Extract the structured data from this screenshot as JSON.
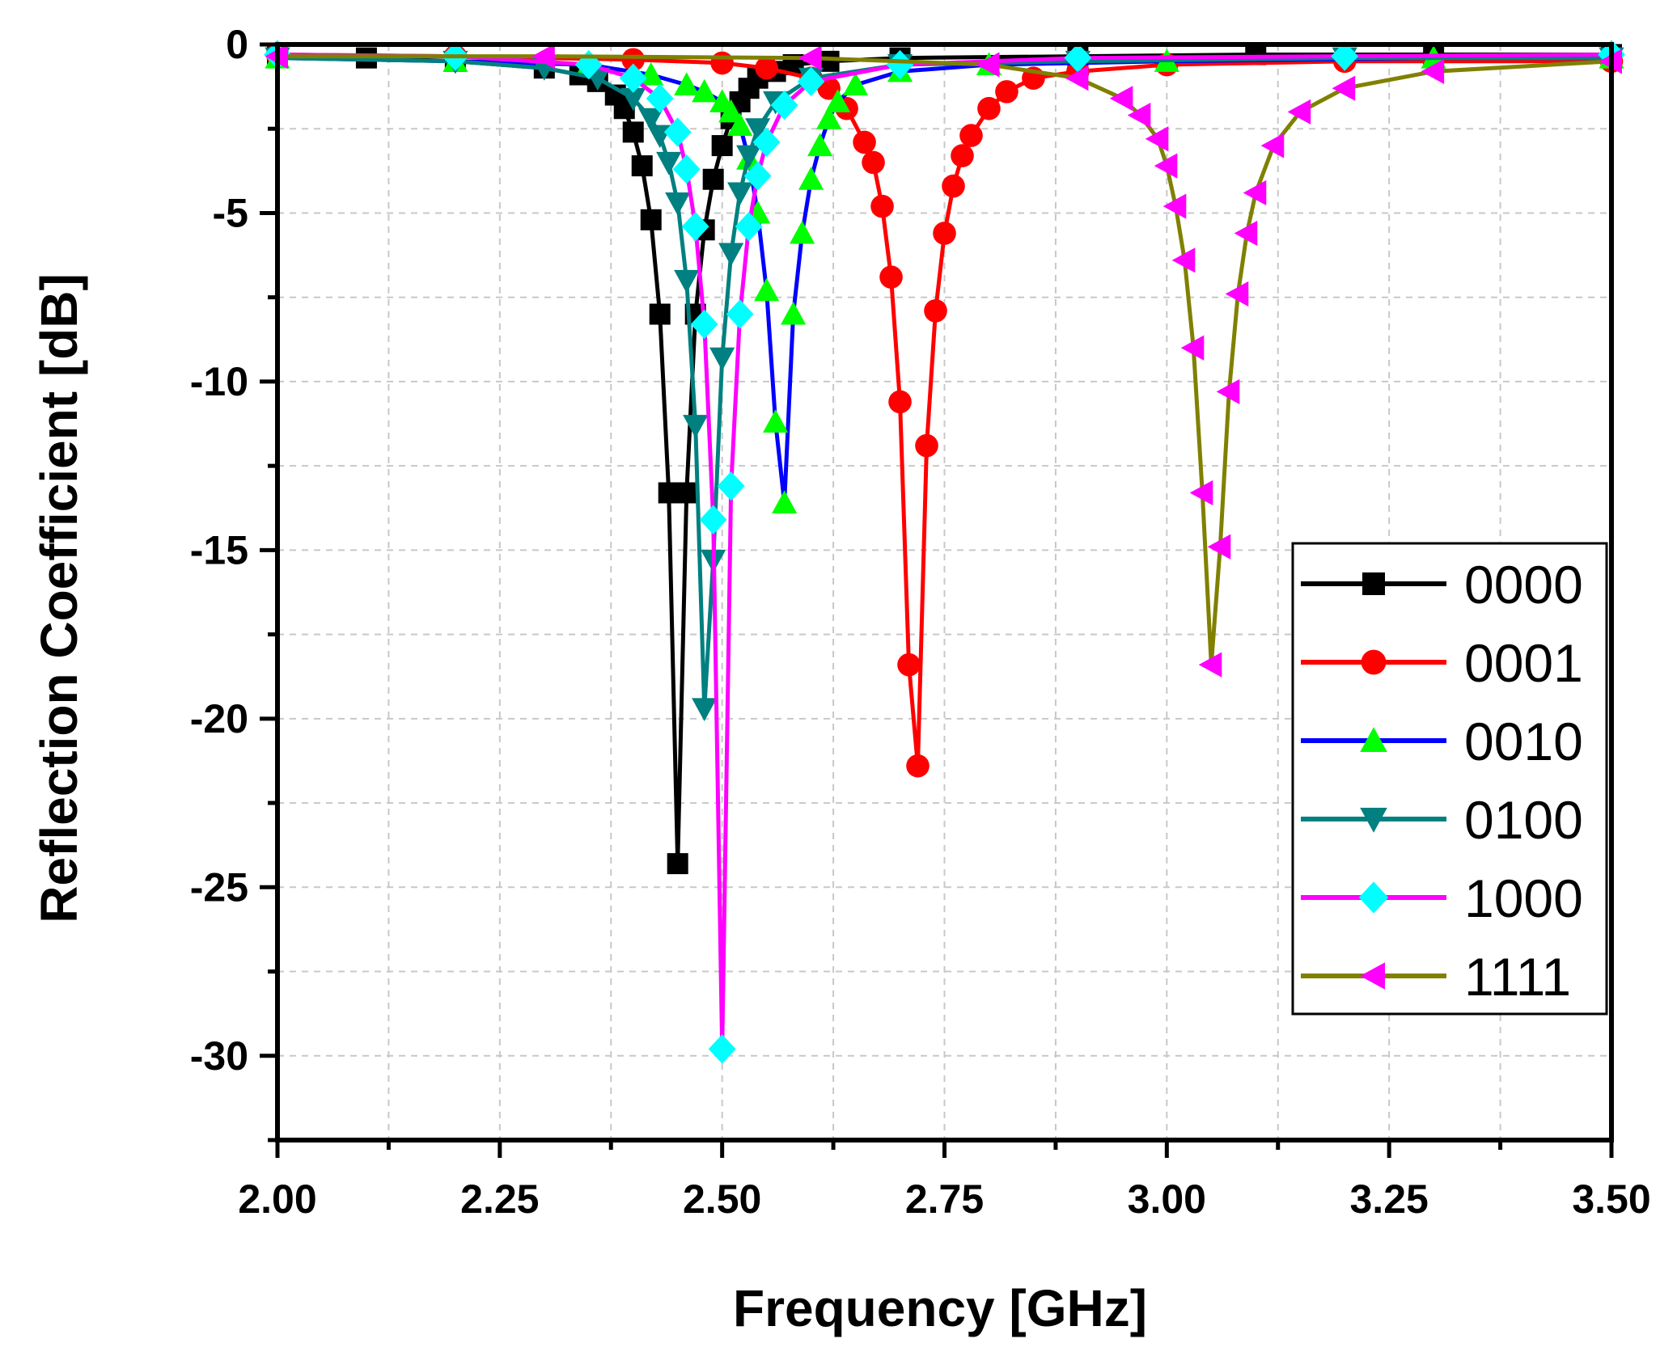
{
  "chart_data": {
    "type": "line",
    "title": "",
    "xlabel": "Frequency [GHz]",
    "ylabel": "Reflection Coefficient [dB]",
    "xlim": [
      2.0,
      3.5
    ],
    "ylim": [
      -32.5,
      0
    ],
    "xticks": [
      2.0,
      2.25,
      2.5,
      2.75,
      3.0,
      3.25,
      3.5
    ],
    "xtick_labels": [
      "2.00",
      "2.25",
      "2.50",
      "2.75",
      "3.00",
      "3.25",
      "3.50"
    ],
    "yticks": [
      0,
      -5,
      -10,
      -15,
      -20,
      -25,
      -30
    ],
    "ytick_labels": [
      "0",
      "-5",
      "-10",
      "-15",
      "-20",
      "-25",
      "-30"
    ],
    "grid": true,
    "legend_position": "right",
    "series": [
      {
        "name": "0000",
        "color": "#000000",
        "marker": "square",
        "x": [
          2.0,
          2.1,
          2.2,
          2.3,
          2.34,
          2.36,
          2.38,
          2.39,
          2.4,
          2.41,
          2.42,
          2.43,
          2.44,
          2.45,
          2.46,
          2.47,
          2.48,
          2.49,
          2.5,
          2.51,
          2.52,
          2.53,
          2.54,
          2.56,
          2.58,
          2.62,
          2.7,
          2.9,
          3.1,
          3.3,
          3.5
        ],
        "y": [
          -0.35,
          -0.4,
          -0.5,
          -0.7,
          -0.9,
          -1.1,
          -1.5,
          -1.9,
          -2.6,
          -3.6,
          -5.2,
          -8.0,
          -13.3,
          -24.3,
          -13.3,
          -8.0,
          -5.5,
          -4.0,
          -3.0,
          -2.2,
          -1.7,
          -1.3,
          -1.0,
          -0.8,
          -0.6,
          -0.5,
          -0.4,
          -0.35,
          -0.3,
          -0.3,
          -0.3
        ]
      },
      {
        "name": "0001",
        "color": "#ff0000",
        "marker": "circle",
        "x": [
          2.0,
          2.2,
          2.4,
          2.5,
          2.55,
          2.6,
          2.62,
          2.64,
          2.66,
          2.67,
          2.68,
          2.69,
          2.7,
          2.71,
          2.72,
          2.73,
          2.74,
          2.75,
          2.76,
          2.77,
          2.78,
          2.8,
          2.82,
          2.85,
          2.9,
          3.0,
          3.2,
          3.5
        ],
        "y": [
          -0.3,
          -0.35,
          -0.45,
          -0.55,
          -0.7,
          -1.0,
          -1.3,
          -1.9,
          -2.9,
          -3.5,
          -4.8,
          -6.9,
          -10.6,
          -18.4,
          -21.4,
          -11.9,
          -7.9,
          -5.6,
          -4.2,
          -3.3,
          -2.7,
          -1.9,
          -1.4,
          -1.0,
          -0.8,
          -0.6,
          -0.5,
          -0.5
        ]
      },
      {
        "name": "0010",
        "color": "#0000ff",
        "marker": "triangle-up",
        "x": [
          2.0,
          2.2,
          2.35,
          2.42,
          2.46,
          2.48,
          2.5,
          2.51,
          2.52,
          2.53,
          2.54,
          2.55,
          2.56,
          2.57,
          2.58,
          2.59,
          2.6,
          2.61,
          2.62,
          2.63,
          2.65,
          2.7,
          2.8,
          3.0,
          3.3,
          3.5
        ],
        "y": [
          -0.4,
          -0.5,
          -0.6,
          -0.9,
          -1.2,
          -1.4,
          -1.7,
          -2.0,
          -2.4,
          -3.4,
          -5.0,
          -7.3,
          -11.2,
          -13.6,
          -8.0,
          -5.6,
          -4.0,
          -3.0,
          -2.2,
          -1.7,
          -1.2,
          -0.8,
          -0.6,
          -0.5,
          -0.4,
          -0.4
        ]
      },
      {
        "name": "0100",
        "color": "#008080",
        "marker": "triangle-down",
        "x": [
          2.0,
          2.2,
          2.3,
          2.36,
          2.4,
          2.42,
          2.43,
          2.44,
          2.45,
          2.46,
          2.47,
          2.48,
          2.49,
          2.5,
          2.51,
          2.52,
          2.53,
          2.54,
          2.56,
          2.6,
          2.7,
          2.9,
          3.2,
          3.5
        ],
        "y": [
          -0.4,
          -0.5,
          -0.7,
          -1.0,
          -1.6,
          -2.2,
          -2.7,
          -3.5,
          -4.7,
          -7.0,
          -11.3,
          -19.7,
          -15.3,
          -9.3,
          -6.2,
          -4.4,
          -3.3,
          -2.5,
          -1.7,
          -1.0,
          -0.6,
          -0.5,
          -0.4,
          -0.4
        ]
      },
      {
        "name": "1000",
        "color": "#ff00ff",
        "marker": "diamond",
        "x": [
          2.0,
          2.2,
          2.35,
          2.4,
          2.43,
          2.45,
          2.46,
          2.47,
          2.48,
          2.49,
          2.5,
          2.51,
          2.52,
          2.53,
          2.54,
          2.55,
          2.57,
          2.6,
          2.7,
          2.9,
          3.2,
          3.5
        ],
        "y": [
          -0.3,
          -0.35,
          -0.6,
          -1.0,
          -1.6,
          -2.6,
          -3.7,
          -5.4,
          -8.3,
          -14.1,
          -29.8,
          -13.1,
          -8.0,
          -5.4,
          -3.9,
          -2.9,
          -1.8,
          -1.1,
          -0.6,
          -0.4,
          -0.35,
          -0.3
        ]
      },
      {
        "name": "1111",
        "color": "#808000",
        "marker": "triangle-left",
        "marker_color": "#ff00ff",
        "x": [
          2.0,
          2.3,
          2.6,
          2.8,
          2.9,
          2.95,
          2.97,
          2.99,
          3.0,
          3.01,
          3.02,
          3.03,
          3.04,
          3.05,
          3.06,
          3.07,
          3.08,
          3.09,
          3.1,
          3.12,
          3.15,
          3.2,
          3.3,
          3.5
        ],
        "y": [
          -0.35,
          -0.35,
          -0.4,
          -0.6,
          -1.0,
          -1.6,
          -2.1,
          -2.8,
          -3.6,
          -4.8,
          -6.4,
          -9.0,
          -13.3,
          -18.4,
          -14.9,
          -10.3,
          -7.4,
          -5.6,
          -4.4,
          -3.0,
          -2.0,
          -1.3,
          -0.8,
          -0.5
        ]
      }
    ]
  }
}
